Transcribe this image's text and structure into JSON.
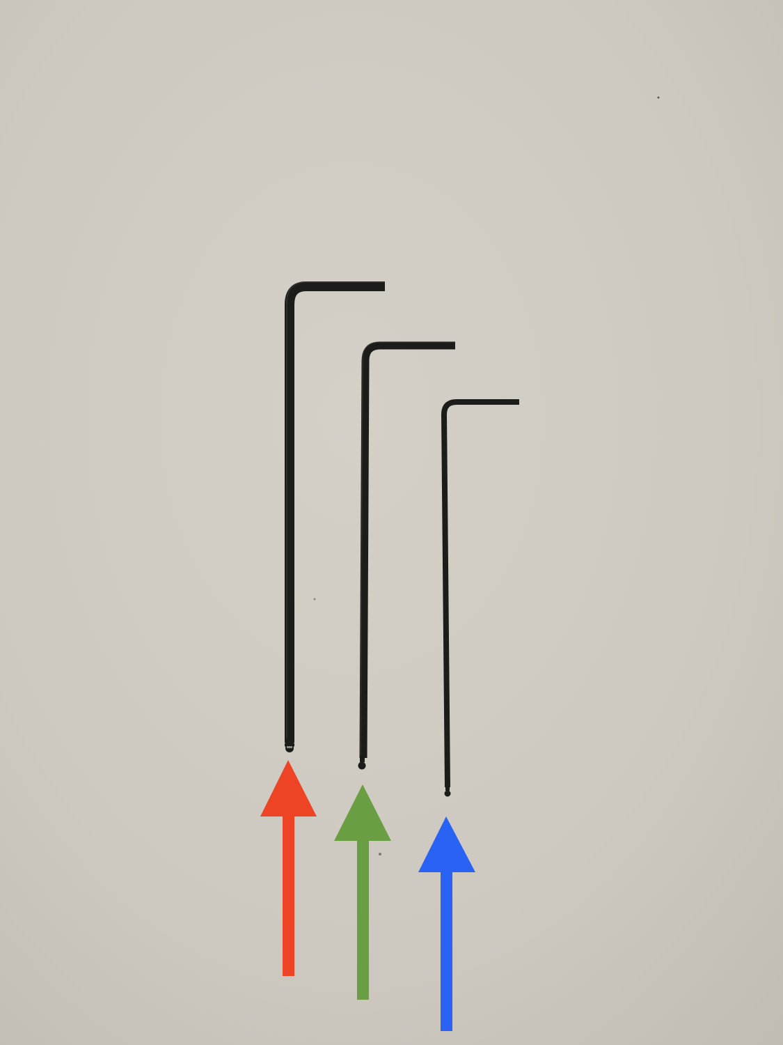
{
  "scene": {
    "background_color": "#cdc9c0",
    "background_highlight": "#d4d0c7",
    "background_shadow": "#bfbbb2"
  },
  "wrenches": [
    {
      "name": "large-ball-end-hex-key",
      "size_rank": "large",
      "color": "#1c1c1a",
      "icon": "hex-key-icon"
    },
    {
      "name": "medium-ball-end-hex-key",
      "size_rank": "medium",
      "color": "#1c1c1a",
      "icon": "hex-key-icon"
    },
    {
      "name": "small-ball-end-hex-key",
      "size_rank": "small",
      "color": "#1c1c1a",
      "icon": "hex-key-icon"
    }
  ],
  "arrows": [
    {
      "name": "red-arrow",
      "color": "#ec4425",
      "points_to": "large-ball-end-hex-key",
      "icon": "up-arrow-icon"
    },
    {
      "name": "green-arrow",
      "color": "#6a9e43",
      "points_to": "medium-ball-end-hex-key",
      "icon": "up-arrow-icon"
    },
    {
      "name": "blue-arrow",
      "color": "#2a62f4",
      "points_to": "small-ball-end-hex-key",
      "icon": "up-arrow-icon"
    }
  ]
}
